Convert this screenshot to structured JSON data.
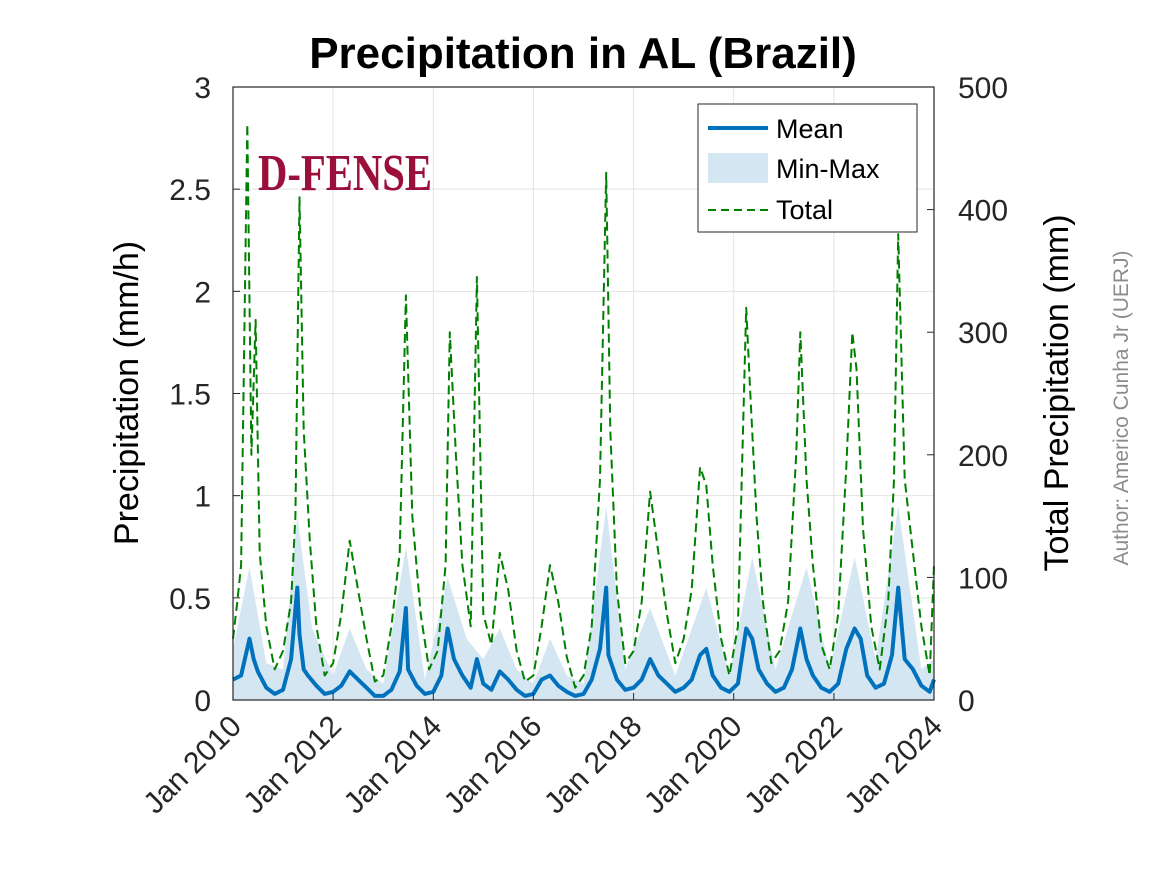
{
  "chart_data": {
    "type": "line",
    "title": "Precipitation in AL (Brazil)",
    "xlabel": "",
    "ylabel": "Precipitation (mm/h)",
    "y2label": "Total Precipitation (mm)",
    "xlim": [
      "2010-01-01",
      "2024-01-01"
    ],
    "ylim": [
      0,
      3
    ],
    "y2lim": [
      0,
      500
    ],
    "x_ticks": [
      "Jan 2010",
      "Jan 2012",
      "Jan 2014",
      "Jan 2016",
      "Jan 2018",
      "Jan 2020",
      "Jan 2022",
      "Jan 2024"
    ],
    "y_ticks": [
      0,
      0.5,
      1,
      1.5,
      2,
      2.5,
      3
    ],
    "y2_ticks": [
      0,
      100,
      200,
      300,
      400,
      500
    ],
    "grid": true,
    "legend": {
      "position": "top-right",
      "entries": [
        "Mean",
        "Min-Max",
        "Total"
      ]
    },
    "colors": {
      "mean": "#0072bd",
      "minmax": "#d5e6f3",
      "total": "#008000"
    },
    "annotations": {
      "logo_text": "D-FENSE",
      "author": "Author: Americo Cunha Jr (UERJ)"
    },
    "series": [
      {
        "name": "Mean",
        "axis": "left",
        "style": "solid",
        "x": [
          "2010-01-01",
          "2010-03-01",
          "2010-05-01",
          "2010-06-01",
          "2010-07-01",
          "2010-09-01",
          "2010-11-01",
          "2011-01-01",
          "2011-03-01",
          "2011-04-15",
          "2011-05-01",
          "2011-06-01",
          "2011-07-01",
          "2011-09-01",
          "2011-11-01",
          "2012-01-01",
          "2012-03-01",
          "2012-05-01",
          "2012-07-01",
          "2012-09-01",
          "2012-11-01",
          "2013-01-01",
          "2013-03-01",
          "2013-05-01",
          "2013-06-15",
          "2013-07-01",
          "2013-09-01",
          "2013-11-01",
          "2014-01-01",
          "2014-03-01",
          "2014-04-15",
          "2014-06-01",
          "2014-08-01",
          "2014-10-01",
          "2014-11-15",
          "2015-01-01",
          "2015-03-01",
          "2015-05-01",
          "2015-07-01",
          "2015-09-01",
          "2015-11-01",
          "2016-01-01",
          "2016-03-01",
          "2016-05-01",
          "2016-07-01",
          "2016-09-01",
          "2016-11-01",
          "2017-01-01",
          "2017-03-01",
          "2017-05-01",
          "2017-06-15",
          "2017-07-01",
          "2017-09-01",
          "2017-11-01",
          "2018-01-01",
          "2018-03-01",
          "2018-05-01",
          "2018-07-01",
          "2018-09-01",
          "2018-11-01",
          "2019-01-01",
          "2019-03-01",
          "2019-05-01",
          "2019-06-15",
          "2019-08-01",
          "2019-10-01",
          "2019-12-01",
          "2020-02-01",
          "2020-04-01",
          "2020-05-15",
          "2020-07-01",
          "2020-09-01",
          "2020-11-01",
          "2021-01-01",
          "2021-03-01",
          "2021-05-01",
          "2021-06-15",
          "2021-08-01",
          "2021-10-01",
          "2021-12-01",
          "2022-02-01",
          "2022-04-01",
          "2022-06-01",
          "2022-07-15",
          "2022-09-01",
          "2022-11-01",
          "2023-01-01",
          "2023-03-01",
          "2023-04-15",
          "2023-06-01",
          "2023-08-01",
          "2023-10-01",
          "2023-12-01",
          "2024-01-01"
        ],
        "values": [
          0.1,
          0.12,
          0.3,
          0.2,
          0.14,
          0.06,
          0.03,
          0.05,
          0.2,
          0.55,
          0.32,
          0.15,
          0.12,
          0.07,
          0.03,
          0.04,
          0.07,
          0.14,
          0.1,
          0.06,
          0.02,
          0.02,
          0.05,
          0.14,
          0.45,
          0.15,
          0.07,
          0.03,
          0.04,
          0.12,
          0.35,
          0.2,
          0.12,
          0.06,
          0.2,
          0.08,
          0.05,
          0.14,
          0.1,
          0.05,
          0.02,
          0.03,
          0.1,
          0.12,
          0.07,
          0.04,
          0.02,
          0.03,
          0.1,
          0.25,
          0.55,
          0.22,
          0.1,
          0.05,
          0.06,
          0.1,
          0.2,
          0.12,
          0.08,
          0.04,
          0.06,
          0.1,
          0.22,
          0.25,
          0.12,
          0.06,
          0.04,
          0.08,
          0.35,
          0.3,
          0.15,
          0.08,
          0.04,
          0.06,
          0.15,
          0.35,
          0.2,
          0.12,
          0.06,
          0.04,
          0.08,
          0.25,
          0.35,
          0.3,
          0.12,
          0.06,
          0.08,
          0.22,
          0.55,
          0.2,
          0.15,
          0.07,
          0.04,
          0.1
        ]
      },
      {
        "name": "Min-Max",
        "axis": "left",
        "style": "band",
        "x": [
          "2010-01-01",
          "2010-05-01",
          "2010-09-01",
          "2011-01-01",
          "2011-04-15",
          "2011-08-01",
          "2012-01-01",
          "2012-05-01",
          "2012-09-01",
          "2013-01-01",
          "2013-06-15",
          "2013-11-01",
          "2014-04-15",
          "2014-09-01",
          "2015-01-01",
          "2015-05-01",
          "2015-09-01",
          "2016-01-01",
          "2016-05-01",
          "2016-09-01",
          "2017-01-01",
          "2017-06-15",
          "2017-11-01",
          "2018-05-01",
          "2018-11-01",
          "2019-06-15",
          "2019-12-01",
          "2020-05-15",
          "2020-11-01",
          "2021-06-15",
          "2021-12-01",
          "2022-06-01",
          "2022-11-01",
          "2023-04-15",
          "2023-10-01",
          "2024-01-01"
        ],
        "min": [
          0.0,
          0.0,
          0.0,
          0.0,
          0.0,
          0.0,
          0.0,
          0.0,
          0.0,
          0.0,
          0.0,
          0.0,
          0.0,
          0.0,
          0.0,
          0.0,
          0.0,
          0.0,
          0.0,
          0.0,
          0.0,
          0.0,
          0.0,
          0.0,
          0.0,
          0.0,
          0.0,
          0.0,
          0.0,
          0.0,
          0.0,
          0.0,
          0.0,
          0.0,
          0.0,
          0.0
        ],
        "max": [
          0.25,
          0.65,
          0.18,
          0.15,
          0.9,
          0.35,
          0.12,
          0.35,
          0.15,
          0.08,
          0.75,
          0.1,
          0.6,
          0.3,
          0.2,
          0.35,
          0.15,
          0.08,
          0.3,
          0.12,
          0.08,
          0.95,
          0.15,
          0.45,
          0.12,
          0.55,
          0.12,
          0.7,
          0.15,
          0.65,
          0.15,
          0.7,
          0.2,
          0.95,
          0.15,
          0.2
        ]
      },
      {
        "name": "Total",
        "axis": "right",
        "style": "dashed",
        "x": [
          "2010-01-01",
          "2010-02-01",
          "2010-03-01",
          "2010-04-15",
          "2010-05-15",
          "2010-06-15",
          "2010-07-15",
          "2010-09-01",
          "2010-11-01",
          "2011-01-01",
          "2011-03-01",
          "2011-04-01",
          "2011-05-01",
          "2011-06-01",
          "2011-07-15",
          "2011-09-01",
          "2011-11-01",
          "2012-01-01",
          "2012-03-01",
          "2012-05-01",
          "2012-07-01",
          "2012-09-01",
          "2012-11-01",
          "2013-01-01",
          "2013-03-01",
          "2013-05-01",
          "2013-06-15",
          "2013-08-01",
          "2013-10-01",
          "2013-12-01",
          "2014-02-01",
          "2014-04-01",
          "2014-05-01",
          "2014-06-15",
          "2014-08-01",
          "2014-10-01",
          "2014-11-15",
          "2015-01-01",
          "2015-03-01",
          "2015-05-01",
          "2015-07-01",
          "2015-09-01",
          "2015-11-01",
          "2016-01-01",
          "2016-03-01",
          "2016-05-01",
          "2016-07-01",
          "2016-09-01",
          "2016-11-01",
          "2017-01-01",
          "2017-03-01",
          "2017-05-01",
          "2017-06-15",
          "2017-07-15",
          "2017-09-01",
          "2017-11-01",
          "2018-01-01",
          "2018-03-01",
          "2018-05-01",
          "2018-07-01",
          "2018-09-01",
          "2018-11-01",
          "2019-01-01",
          "2019-03-01",
          "2019-05-01",
          "2019-06-15",
          "2019-08-01",
          "2019-10-01",
          "2019-12-01",
          "2020-02-01",
          "2020-04-01",
          "2020-05-01",
          "2020-06-15",
          "2020-08-01",
          "2020-10-01",
          "2020-12-01",
          "2021-02-01",
          "2021-04-01",
          "2021-05-01",
          "2021-06-15",
          "2021-08-01",
          "2021-10-01",
          "2021-12-01",
          "2022-02-01",
          "2022-04-01",
          "2022-05-15",
          "2022-06-15",
          "2022-08-01",
          "2022-10-01",
          "2022-12-01",
          "2023-02-01",
          "2023-03-15",
          "2023-04-15",
          "2023-06-01",
          "2023-08-01",
          "2023-10-01",
          "2023-12-01",
          "2024-01-01"
        ],
        "values": [
          50,
          80,
          110,
          470,
          200,
          310,
          120,
          60,
          25,
          40,
          80,
          150,
          410,
          220,
          130,
          60,
          20,
          30,
          70,
          130,
          90,
          50,
          15,
          20,
          60,
          120,
          330,
          150,
          70,
          25,
          40,
          110,
          300,
          200,
          110,
          60,
          345,
          70,
          45,
          120,
          90,
          40,
          15,
          20,
          60,
          110,
          80,
          35,
          10,
          20,
          60,
          180,
          430,
          220,
          90,
          30,
          40,
          80,
          170,
          120,
          70,
          30,
          50,
          90,
          190,
          175,
          110,
          50,
          20,
          60,
          320,
          250,
          150,
          80,
          30,
          40,
          80,
          200,
          300,
          180,
          110,
          45,
          25,
          70,
          190,
          300,
          270,
          140,
          60,
          25,
          80,
          180,
          380,
          180,
          120,
          60,
          20,
          110
        ]
      }
    ]
  }
}
